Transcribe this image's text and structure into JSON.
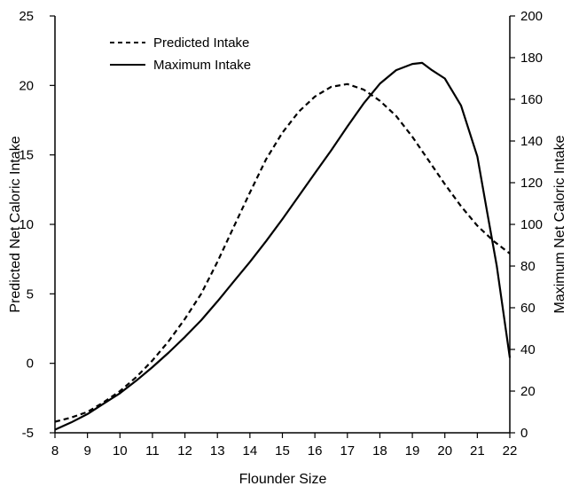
{
  "chart_data": {
    "type": "line",
    "xlabel": "Flounder Size",
    "ylabel_left": "Predicted Net Caloric Intake",
    "ylabel_right": "Maximum Net Caloric Intake",
    "x_ticks": [
      8,
      9,
      10,
      11,
      12,
      13,
      14,
      15,
      16,
      17,
      18,
      19,
      20,
      21,
      22
    ],
    "xlim": [
      8,
      22
    ],
    "y_left_ticks": [
      -5,
      0,
      5,
      10,
      15,
      20,
      25
    ],
    "ylim_left": [
      -5,
      25
    ],
    "y_right_ticks": [
      0,
      20,
      40,
      60,
      80,
      100,
      120,
      140,
      160,
      180,
      200
    ],
    "ylim_right": [
      0,
      200
    ],
    "legend_position": "top-left",
    "grid": false,
    "series": [
      {
        "name": "Predicted Intake",
        "axis": "left",
        "style": "dashed",
        "color": "#000000",
        "x": [
          8.0,
          8.5,
          9.0,
          9.5,
          10.0,
          10.5,
          11.0,
          11.5,
          12.0,
          12.5,
          13.0,
          13.5,
          14.0,
          14.5,
          15.0,
          15.5,
          16.0,
          16.5,
          17.0,
          17.5,
          18.0,
          18.5,
          19.0,
          19.5,
          20.0,
          20.5,
          21.0,
          21.5,
          22.0
        ],
        "values": [
          -4.2,
          -3.9,
          -3.5,
          -2.8,
          -2.0,
          -1.0,
          0.2,
          1.6,
          3.2,
          5.0,
          7.3,
          9.8,
          12.3,
          14.7,
          16.6,
          18.1,
          19.2,
          19.9,
          20.1,
          19.7,
          18.9,
          17.8,
          16.3,
          14.6,
          12.9,
          11.3,
          9.9,
          8.8,
          7.9
        ]
      },
      {
        "name": "Maximum Intake",
        "axis": "right",
        "style": "solid",
        "color": "#000000",
        "x": [
          8.0,
          8.5,
          9.0,
          9.5,
          10.0,
          10.5,
          11.0,
          11.5,
          12.0,
          12.5,
          13.0,
          13.5,
          14.0,
          14.5,
          15.0,
          15.5,
          16.0,
          16.5,
          17.0,
          17.5,
          18.0,
          18.5,
          19.0,
          19.3,
          19.6,
          20.0,
          20.5,
          21.0,
          21.3,
          21.6,
          22.0
        ],
        "values": [
          1.5,
          5.0,
          9.0,
          14.0,
          19.0,
          25.0,
          31.5,
          38.5,
          46.0,
          54.0,
          63.0,
          72.5,
          82.0,
          92.0,
          102.5,
          113.5,
          124.5,
          135.5,
          147.0,
          158.0,
          167.5,
          174.0,
          177.0,
          177.5,
          174.0,
          170.0,
          157.0,
          132.5,
          106.0,
          80.0,
          36.0
        ]
      }
    ]
  }
}
